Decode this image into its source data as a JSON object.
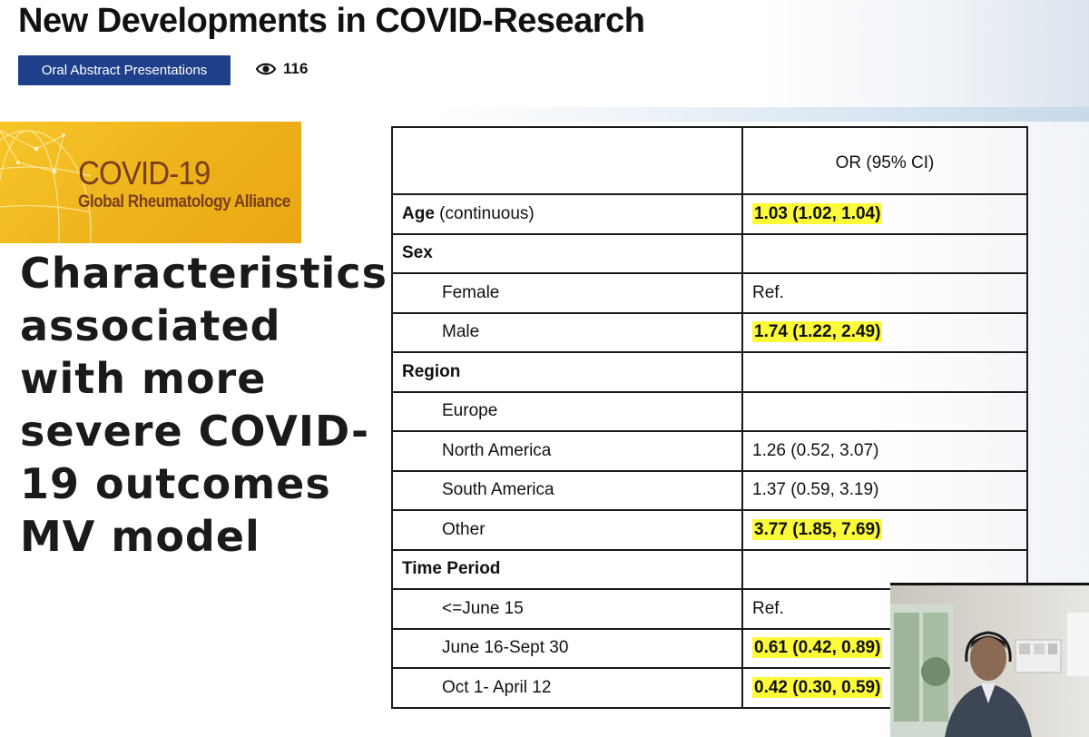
{
  "header": {
    "title": "New Developments in COVID-Research",
    "category_label": "Oral Abstract Presentations",
    "view_count": "116",
    "view_icon": "eye-icon"
  },
  "slide": {
    "logo": {
      "title": "COVID-19",
      "subtitle": "Global Rheumatology Alliance"
    },
    "heading": "Characteristics\nassociated\nwith more\nsevere COVID-\n19 outcomes\nMV model",
    "table": {
      "column_header": "OR (95% CI)",
      "highlight_color": "#fbfb3a",
      "rows": [
        {
          "label_bold": "Age",
          "label_rest": " (continuous)",
          "value": "1.03 (1.02, 1.04)",
          "highlight": true,
          "indent": false
        },
        {
          "label_bold": "Sex",
          "label_rest": "",
          "value": "",
          "highlight": false,
          "indent": false
        },
        {
          "label_bold": "",
          "label_rest": "Female",
          "value": "Ref.",
          "highlight": false,
          "indent": true
        },
        {
          "label_bold": "",
          "label_rest": "Male",
          "value": "1.74 (1.22, 2.49)",
          "highlight": true,
          "indent": true
        },
        {
          "label_bold": "Region",
          "label_rest": "",
          "value": "",
          "highlight": false,
          "indent": false
        },
        {
          "label_bold": "",
          "label_rest": "Europe",
          "value": "",
          "highlight": false,
          "indent": true
        },
        {
          "label_bold": "",
          "label_rest": "North America",
          "value": "1.26 (0.52, 3.07)",
          "highlight": false,
          "indent": true
        },
        {
          "label_bold": "",
          "label_rest": "South America",
          "value": "1.37 (0.59, 3.19)",
          "highlight": false,
          "indent": true
        },
        {
          "label_bold": "",
          "label_rest": "Other",
          "value": "3.77 (1.85, 7.69)",
          "highlight": true,
          "indent": true
        },
        {
          "label_bold": "Time Period",
          "label_rest": "",
          "value": "",
          "highlight": false,
          "indent": false
        },
        {
          "label_bold": "",
          "label_rest": "<=June 15",
          "value": "Ref.",
          "highlight": false,
          "indent": true
        },
        {
          "label_bold": "",
          "label_rest": "June 16-Sept 30",
          "value": "0.61 (0.42, 0.89)",
          "highlight": true,
          "indent": true
        },
        {
          "label_bold": "",
          "label_rest": "Oct 1- April 12",
          "value": "0.42 (0.30, 0.59)",
          "highlight": true,
          "indent": true
        }
      ]
    }
  },
  "webcam": {
    "icon": "presenter-video"
  }
}
